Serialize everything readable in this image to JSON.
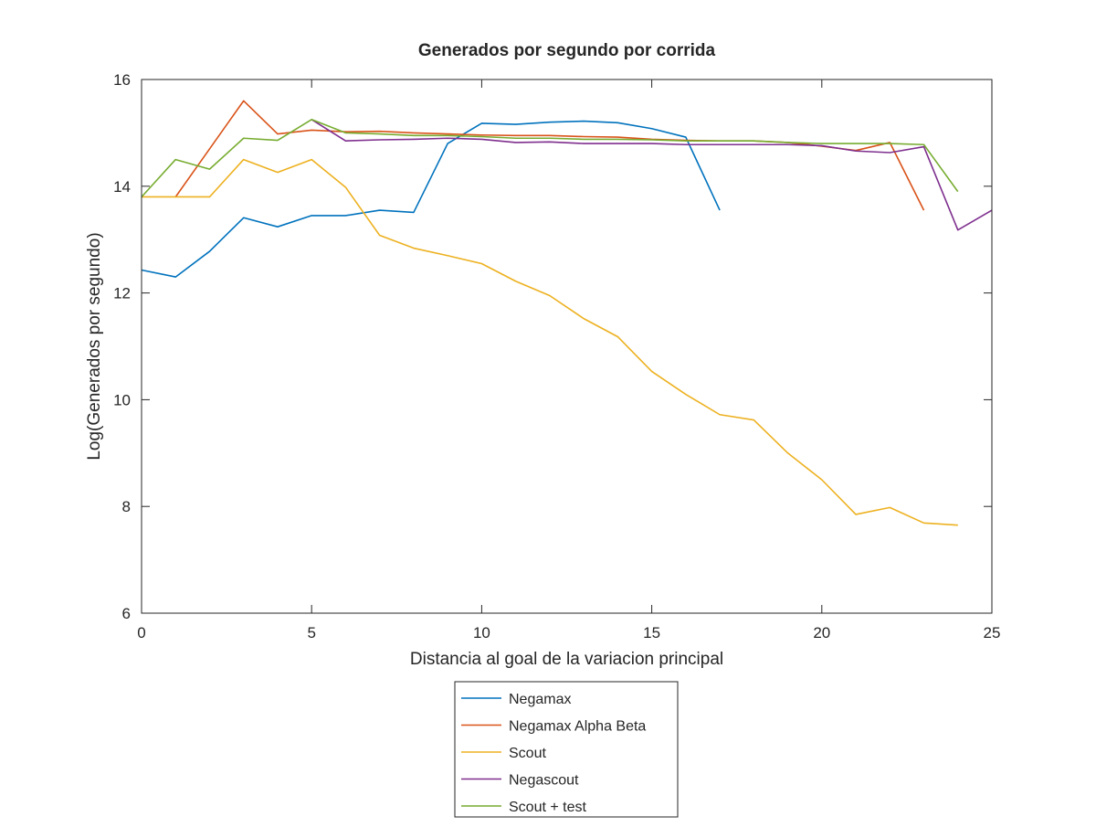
{
  "chart_data": {
    "type": "line",
    "title": "Generados por segundo por corrida",
    "xlabel": "Distancia al goal de la variacion principal",
    "ylabel": "Log(Generados por segundo)",
    "xlim": [
      0,
      25
    ],
    "ylim": [
      6,
      16
    ],
    "xticks": [
      0,
      5,
      10,
      15,
      20,
      25
    ],
    "yticks": [
      6,
      8,
      10,
      12,
      14,
      16
    ],
    "grid": false,
    "legend_position": "bottom-outside",
    "series": [
      {
        "name": "Negamax",
        "color": "#0072BD",
        "x": [
          0,
          1,
          2,
          3,
          4,
          5,
          6,
          7,
          8,
          9,
          10,
          11,
          12,
          13,
          14,
          15,
          16,
          17
        ],
        "y": [
          12.43,
          12.3,
          12.78,
          13.41,
          13.24,
          13.45,
          13.45,
          13.55,
          13.51,
          14.8,
          15.18,
          15.16,
          15.2,
          15.22,
          15.19,
          15.08,
          14.92,
          13.55
        ]
      },
      {
        "name": "Negamax Alpha Beta",
        "color": "#D95319",
        "x": [
          1,
          2,
          3,
          4,
          5,
          6,
          7,
          8,
          9,
          10,
          11,
          12,
          13,
          14,
          15,
          16,
          17,
          18,
          19,
          20,
          21,
          22,
          23
        ],
        "y": [
          13.8,
          14.7,
          15.6,
          14.98,
          15.05,
          15.02,
          15.03,
          15.0,
          14.98,
          14.96,
          14.95,
          14.95,
          14.93,
          14.92,
          14.88,
          14.86,
          14.85,
          14.85,
          14.82,
          14.75,
          14.67,
          14.82,
          13.55
        ]
      },
      {
        "name": "Scout",
        "color": "#EDB120",
        "x": [
          0,
          1,
          2,
          3,
          4,
          5,
          6,
          7,
          8,
          9,
          10,
          11,
          12,
          13,
          14,
          15,
          16,
          17,
          18,
          19,
          20,
          21,
          22,
          23,
          24
        ],
        "y": [
          13.8,
          13.8,
          13.8,
          14.5,
          14.26,
          14.5,
          13.98,
          13.08,
          12.84,
          12.7,
          12.55,
          12.22,
          11.95,
          11.52,
          11.18,
          10.53,
          10.1,
          9.72,
          9.62,
          9.0,
          8.5,
          7.85,
          7.98,
          7.69,
          7.65
        ]
      },
      {
        "name": "Negascout",
        "color": "#7E2F8E",
        "x": [
          5,
          6,
          7,
          8,
          9,
          10,
          11,
          12,
          13,
          14,
          15,
          16,
          17,
          18,
          19,
          20,
          21,
          22,
          23,
          24,
          25
        ],
        "y": [
          15.25,
          14.85,
          14.87,
          14.88,
          14.9,
          14.88,
          14.82,
          14.83,
          14.8,
          14.8,
          14.8,
          14.78,
          14.78,
          14.78,
          14.78,
          14.76,
          14.66,
          14.63,
          14.74,
          13.18,
          13.55
        ]
      },
      {
        "name": "Scout + test",
        "color": "#77AC30",
        "x": [
          0,
          1,
          2,
          3,
          4,
          5,
          6,
          7,
          8,
          9,
          10,
          11,
          12,
          13,
          14,
          15,
          16,
          17,
          18,
          19,
          20,
          21,
          22,
          23,
          24
        ],
        "y": [
          13.8,
          14.5,
          14.32,
          14.9,
          14.86,
          15.25,
          15.0,
          14.98,
          14.95,
          14.95,
          14.93,
          14.9,
          14.9,
          14.88,
          14.88,
          14.87,
          14.85,
          14.85,
          14.85,
          14.82,
          14.8,
          14.8,
          14.8,
          14.78,
          13.9
        ]
      }
    ]
  }
}
